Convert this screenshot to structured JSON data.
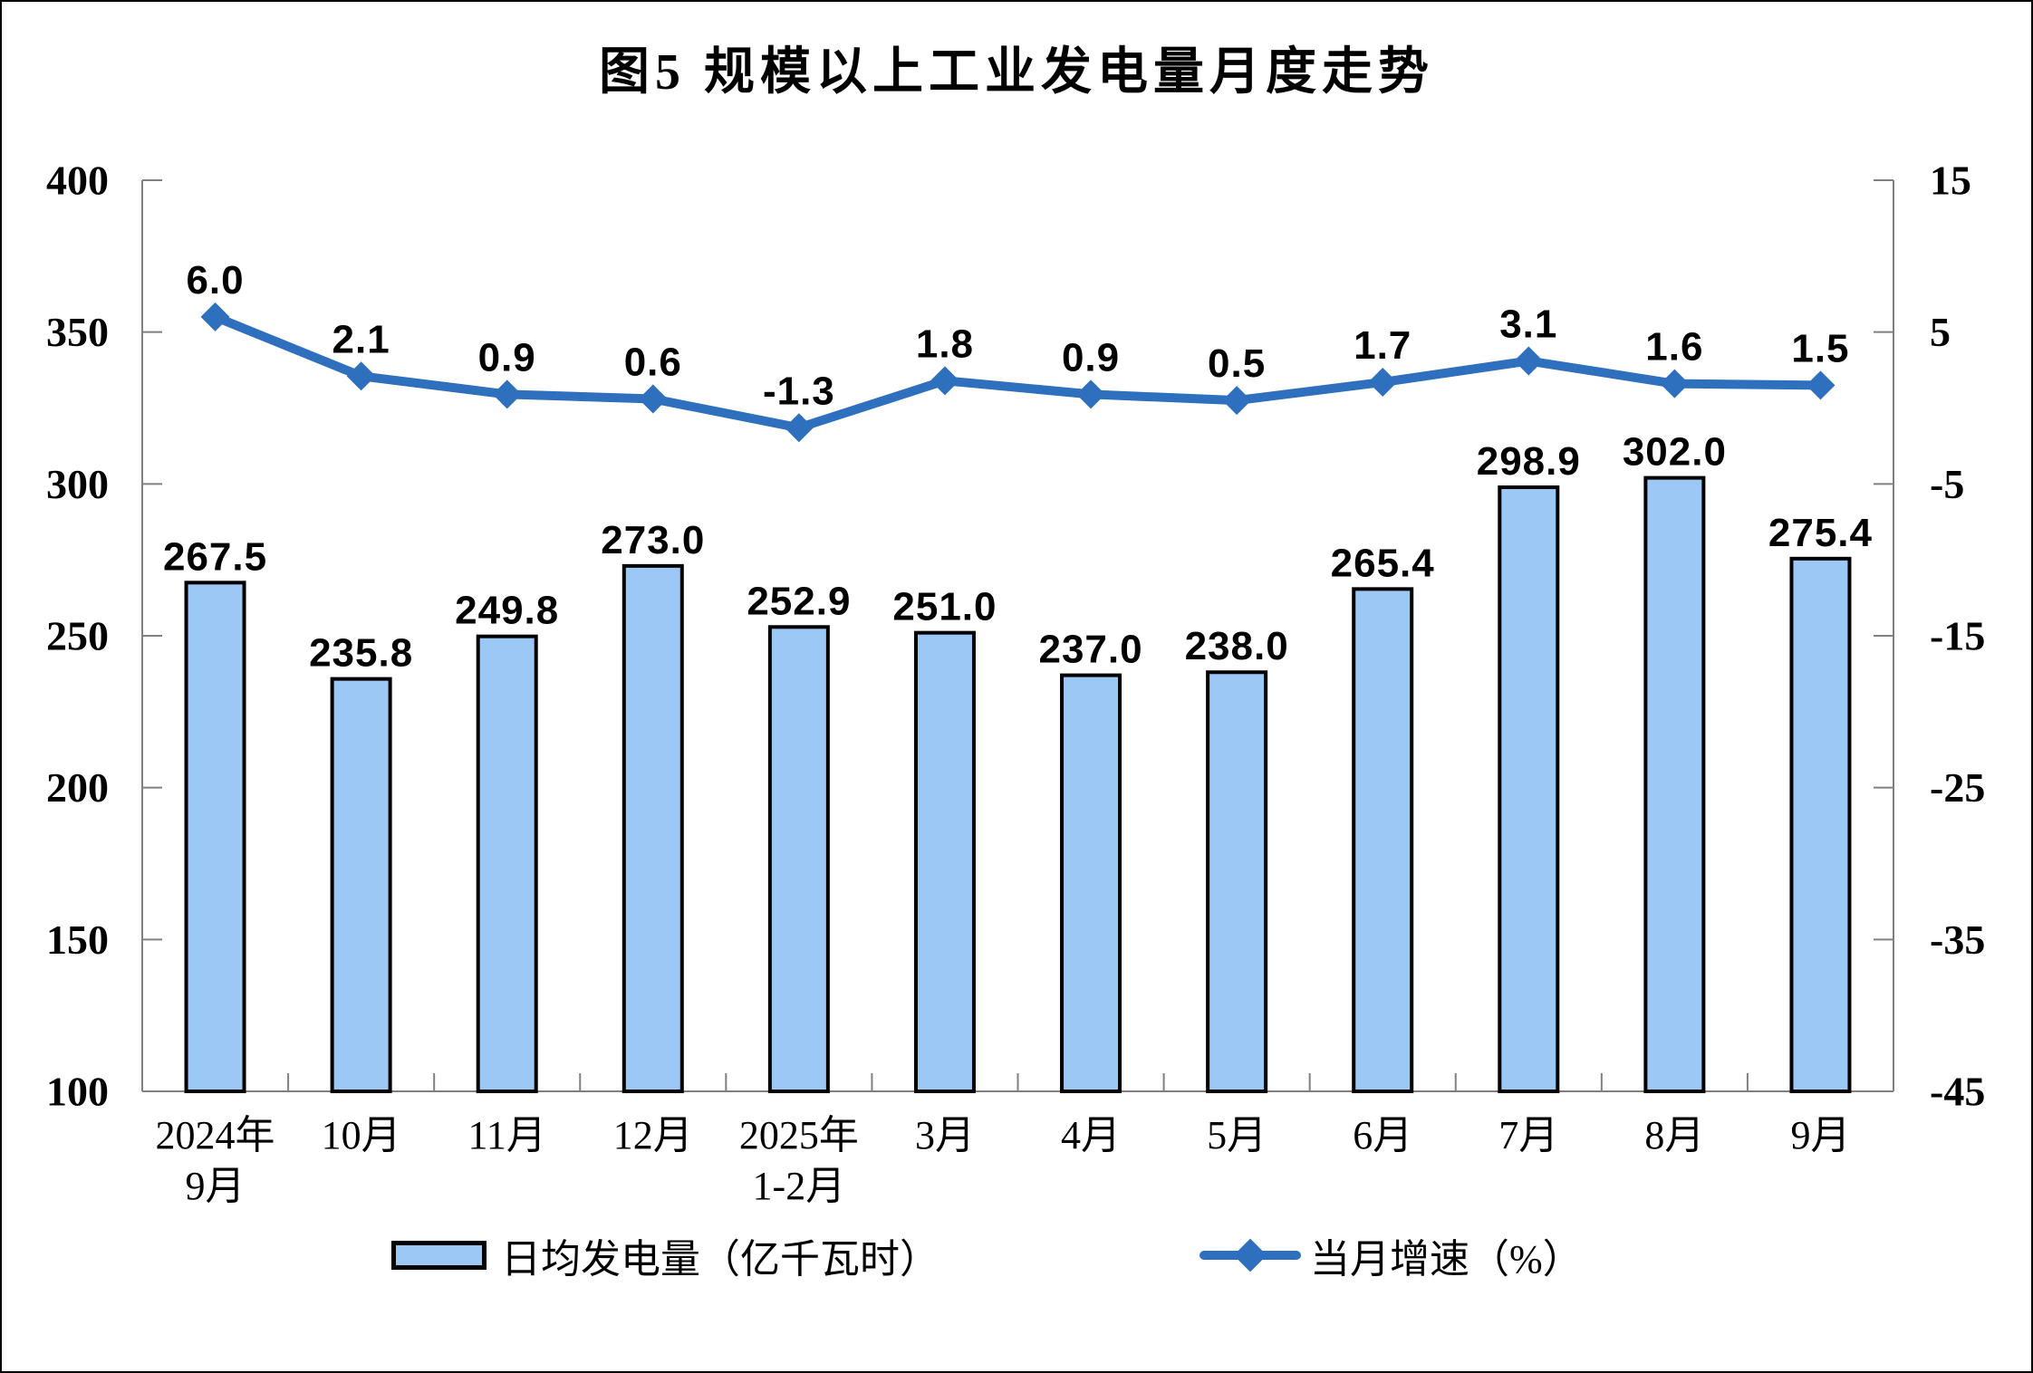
{
  "title": "图5 规模以上工业发电量月度走势",
  "colors": {
    "background": "#FFFFFF",
    "bar_fill": "#9CC8F5",
    "bar_border": "#000000",
    "line": "#2E6FBE",
    "axis": "#808080",
    "text": "#000000"
  },
  "legend": {
    "bar_label": "日均发电量（亿千瓦时）",
    "line_label": "当月增速（%）"
  },
  "chart_data": {
    "type": "bar+line combo",
    "categories": [
      "2024年9月",
      "10月",
      "11月",
      "12月",
      "2025年1-2月",
      "3月",
      "4月",
      "5月",
      "6月",
      "7月",
      "8月",
      "9月"
    ],
    "category_lines": [
      [
        "2024年",
        "9月"
      ],
      [
        "10月"
      ],
      [
        "11月"
      ],
      [
        "12月"
      ],
      [
        "2025年",
        "1-2月"
      ],
      [
        "3月"
      ],
      [
        "4月"
      ],
      [
        "5月"
      ],
      [
        "6月"
      ],
      [
        "7月"
      ],
      [
        "8月"
      ],
      [
        "9月"
      ]
    ],
    "series": [
      {
        "name": "日均发电量（亿千瓦时）",
        "type": "bar",
        "axis": "left",
        "values": [
          267.5,
          235.8,
          249.8,
          273.0,
          252.9,
          251.0,
          237.0,
          238.0,
          265.4,
          298.9,
          302.0,
          275.4
        ],
        "labels": [
          "267.5",
          "235.8",
          "249.8",
          "273.0",
          "252.9",
          "251.0",
          "237.0",
          "238.0",
          "265.4",
          "298.9",
          "302.0",
          "275.4"
        ]
      },
      {
        "name": "当月增速（%）",
        "type": "line",
        "axis": "right",
        "values": [
          6.0,
          2.1,
          0.9,
          0.6,
          -1.3,
          1.8,
          0.9,
          0.5,
          1.7,
          3.1,
          1.6,
          1.5
        ],
        "labels": [
          "6.0",
          "2.1",
          "0.9",
          "0.6",
          "-1.3",
          "1.8",
          "0.9",
          "0.5",
          "1.7",
          "3.1",
          "1.6",
          "1.5"
        ]
      }
    ],
    "left_axis": {
      "min": 100,
      "max": 400,
      "step": 50,
      "tick_labels": [
        "400",
        "350",
        "300",
        "250",
        "200",
        "150",
        "100"
      ]
    },
    "right_axis": {
      "min": -45,
      "max": 15,
      "step": 10,
      "tick_labels": [
        "15",
        "5",
        "-5",
        "-15",
        "-25",
        "-35",
        "-45"
      ]
    },
    "grid": false,
    "legend_position": "bottom"
  }
}
